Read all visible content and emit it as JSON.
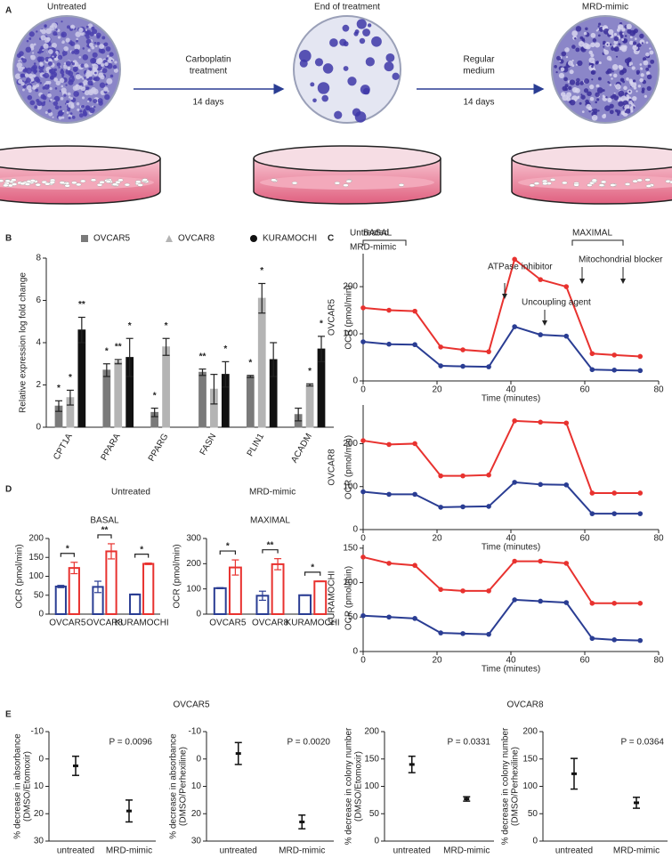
{
  "panel_labels": [
    "A",
    "B",
    "C",
    "D",
    "E"
  ],
  "diagram": {
    "titles": [
      "Untreated",
      "End of treatment",
      "MRD-mimic"
    ],
    "arrows": [
      {
        "label": [
          "Carboplatin",
          "treatment"
        ],
        "duration": "14 days"
      },
      {
        "label": [
          "Regular",
          "medium"
        ],
        "duration": "14 days"
      }
    ]
  },
  "chart_data": [
    {
      "type": "bar",
      "ylabel": "Relative expression log fold change",
      "categories": [
        "CPT1A",
        "PPARA",
        "PPARG",
        "FASN",
        "PLIN1",
        "ACADM"
      ],
      "ylim": [
        0,
        8
      ],
      "yticks": [
        0,
        2,
        4,
        6,
        8
      ],
      "series": [
        {
          "name": "OVCAR5",
          "color": "#7a7a7a",
          "marker": "square",
          "values": [
            1.0,
            2.7,
            0.7,
            2.6,
            2.4,
            0.6
          ],
          "errors": [
            0.25,
            0.3,
            0.2,
            0.15,
            0.05,
            0.3
          ],
          "stars": [
            "*",
            "*",
            "*",
            "**",
            "*",
            null
          ]
        },
        {
          "name": "OVCAR8",
          "color": "#b4b4b4",
          "marker": "triangle",
          "values": [
            1.4,
            3.1,
            3.8,
            1.8,
            6.1,
            2.0
          ],
          "errors": [
            0.35,
            0.1,
            0.4,
            0.7,
            0.7,
            0.05
          ],
          "stars": [
            "*",
            "**",
            "*",
            null,
            "*",
            "*"
          ]
        },
        {
          "name": "KURAMOCHI",
          "color": "#111111",
          "marker": "circle",
          "values": [
            4.6,
            3.3,
            null,
            2.5,
            3.2,
            3.7
          ],
          "errors": [
            0.6,
            0.9,
            null,
            0.6,
            0.8,
            0.6
          ],
          "stars": [
            "**",
            "*",
            null,
            "*",
            null,
            "*"
          ]
        }
      ]
    },
    {
      "type": "line",
      "title": "OVCAR5",
      "xlabel": "Time (minutes)",
      "ylabel": "OCR (pmol/min)",
      "annotations": [
        "BASAL",
        "MAXIMAL",
        "ATPase inhibitor",
        "Uncoupling agent",
        "Mitochondrial blocker"
      ],
      "x": [
        0,
        7,
        14,
        21,
        27,
        34,
        41,
        48,
        55,
        62,
        68,
        75
      ],
      "xlim": [
        0,
        80
      ],
      "xticks": [
        0,
        20,
        40,
        60,
        80
      ],
      "ylim": [
        0,
        270
      ],
      "yticks": [
        0,
        100,
        200
      ],
      "series": [
        {
          "name": "Untreated",
          "color": "#2a3d93",
          "values": [
            83,
            78,
            77,
            32,
            31,
            30,
            115,
            98,
            95,
            24,
            23,
            22
          ]
        },
        {
          "name": "MRD-mimic",
          "color": "#e8322f",
          "values": [
            155,
            150,
            148,
            72,
            66,
            62,
            258,
            215,
            200,
            58,
            55,
            52
          ]
        }
      ]
    },
    {
      "type": "line",
      "title": "OVCAR8",
      "xlabel": "Time (minutes)",
      "ylabel": "OCR (pmol/min)",
      "x": [
        0,
        7,
        14,
        21,
        27,
        34,
        41,
        48,
        55,
        62,
        68,
        75
      ],
      "xlim": [
        0,
        80
      ],
      "xticks": [
        0,
        20,
        40,
        60,
        80
      ],
      "ylim": [
        0,
        290
      ],
      "yticks": [
        0,
        100,
        200
      ],
      "series": [
        {
          "color": "#2a3d93",
          "values": [
            88,
            82,
            82,
            52,
            53,
            54,
            110,
            105,
            104,
            37,
            37,
            37
          ]
        },
        {
          "color": "#e8322f",
          "values": [
            207,
            198,
            200,
            125,
            125,
            127,
            253,
            250,
            248,
            85,
            85,
            85
          ]
        }
      ]
    },
    {
      "type": "line",
      "title": "KURAMOCHI",
      "xlabel": "Time (minutes)",
      "ylabel": "OCR (pmol/min)",
      "x": [
        0,
        7,
        14,
        21,
        27,
        34,
        41,
        48,
        55,
        62,
        68,
        75
      ],
      "xlim": [
        0,
        80
      ],
      "xticks": [
        0,
        20,
        40,
        60,
        80
      ],
      "ylim": [
        0,
        155
      ],
      "yticks": [
        0,
        50,
        100,
        150
      ],
      "series": [
        {
          "color": "#2a3d93",
          "values": [
            52,
            50,
            48,
            27,
            26,
            25,
            75,
            73,
            71,
            19,
            17,
            16
          ]
        },
        {
          "color": "#e8322f",
          "values": [
            137,
            128,
            125,
            90,
            88,
            88,
            131,
            131,
            128,
            70,
            70,
            70
          ]
        }
      ]
    },
    {
      "type": "bar",
      "title": "BASAL",
      "ylabel": "OCR (pmol/min)",
      "outline": true,
      "categories": [
        "OVCAR5",
        "OVCAR8",
        "KURAMOCHI"
      ],
      "ylim": [
        0,
        200
      ],
      "yticks": [
        0,
        50,
        100,
        150,
        200
      ],
      "significance": [
        "*",
        "**",
        "*"
      ],
      "series": [
        {
          "name": "Untreated",
          "color": "#2a3d93",
          "values": [
            73,
            72,
            52
          ],
          "errors": [
            3,
            15,
            1
          ]
        },
        {
          "name": "MRD-mimic",
          "color": "#e8322f",
          "values": [
            122,
            166,
            133
          ],
          "errors": [
            15,
            20,
            2
          ]
        }
      ]
    },
    {
      "type": "bar",
      "title": "MAXIMAL",
      "ylabel": "OCR (pmol/min)",
      "outline": true,
      "categories": [
        "OVCAR5",
        "OVCAR8",
        "KURAMOCHI"
      ],
      "ylim": [
        0,
        300
      ],
      "yticks": [
        0,
        100,
        200,
        300
      ],
      "significance": [
        "*",
        "**",
        "*"
      ],
      "series": [
        {
          "color": "#2a3d93",
          "values": [
            103,
            73,
            75
          ],
          "errors": [
            2,
            18,
            1
          ]
        },
        {
          "color": "#e8322f",
          "values": [
            185,
            198,
            130
          ],
          "errors": [
            30,
            22,
            1
          ]
        }
      ]
    },
    {
      "type": "errorbar",
      "title": "OVCAR5",
      "ylabel": [
        "% decrease in absorbance",
        "(DMSO/Etomoxir)"
      ],
      "annotation": "P = 0.0096",
      "categories": [
        "untreated",
        "MRD-mimic"
      ],
      "values": [
        2.5,
        19
      ],
      "errors": [
        3.5,
        4
      ],
      "ylim": [
        30,
        -10
      ],
      "yticks": [
        -10,
        0,
        10,
        20,
        30
      ]
    },
    {
      "type": "errorbar",
      "ylabel": [
        "% decrease in absorbance",
        "(DMSO/Perhexiline)"
      ],
      "annotation": "P = 0.0020",
      "categories": [
        "untreated",
        "MRD-mimic"
      ],
      "values": [
        -2,
        23
      ],
      "errors": [
        4,
        2.5
      ],
      "ylim": [
        30,
        -10
      ],
      "yticks": [
        -10,
        0,
        10,
        20,
        30
      ]
    },
    {
      "type": "errorbar",
      "title": "OVCAR8",
      "ylabel": [
        "% decrease in colony number",
        "(DMSO/Etomoxir)"
      ],
      "annotation": "P = 0.0331",
      "categories": [
        "untreated",
        "MRD-mimic"
      ],
      "values": [
        140,
        77
      ],
      "errors": [
        15,
        4
      ],
      "ylim": [
        0,
        200
      ],
      "yticks": [
        0,
        50,
        100,
        150,
        200
      ]
    },
    {
      "type": "errorbar",
      "ylabel": [
        "% decrease in colony number",
        "(DMSO/Perhexiline)"
      ],
      "annotation": "P = 0.0364",
      "categories": [
        "untreated",
        "MRD-mimic"
      ],
      "values": [
        123,
        70
      ],
      "errors": [
        28,
        10
      ],
      "ylim": [
        0,
        200
      ],
      "yticks": [
        0,
        50,
        100,
        150,
        200
      ]
    }
  ]
}
